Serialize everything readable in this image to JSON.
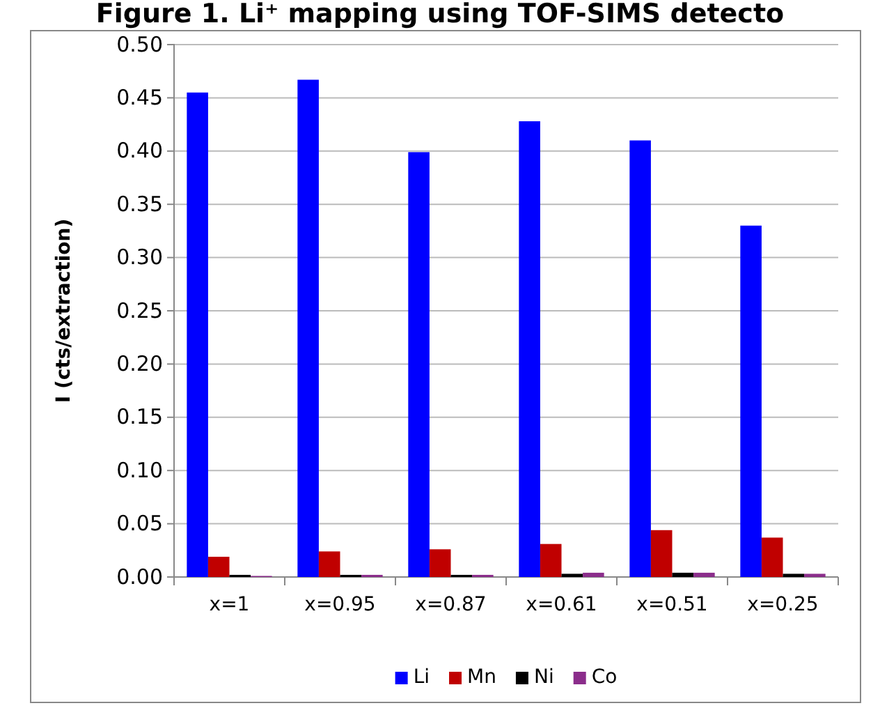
{
  "chart_data": {
    "type": "bar",
    "title": "Figure 1. Li⁺ mapping using TOF-SIMS detecto",
    "ylabel": "I (cts/extraction)",
    "categories": [
      "x=1",
      "x=0.95",
      "x=0.87",
      "x=0.61",
      "x=0.51",
      "x=0.25"
    ],
    "series": [
      {
        "name": "Li",
        "color": "#0000ff",
        "values": [
          0.455,
          0.467,
          0.399,
          0.428,
          0.41,
          0.33
        ]
      },
      {
        "name": "Mn",
        "color": "#c00000",
        "values": [
          0.019,
          0.024,
          0.026,
          0.031,
          0.044,
          0.037
        ]
      },
      {
        "name": "Ni",
        "color": "#000000",
        "values": [
          0.002,
          0.002,
          0.002,
          0.003,
          0.004,
          0.003
        ]
      },
      {
        "name": "Co",
        "color": "#8b2d8b",
        "values": [
          0.001,
          0.002,
          0.002,
          0.004,
          0.004,
          0.003
        ]
      }
    ],
    "ylim": [
      0,
      0.5
    ],
    "yticks": [
      {
        "value": 0,
        "label": "0.00"
      },
      {
        "value": 0.05,
        "label": "0.05"
      },
      {
        "value": 0.1,
        "label": "0.10"
      },
      {
        "value": 0.15,
        "label": "0.15"
      },
      {
        "value": 0.2,
        "label": "0.20"
      },
      {
        "value": 0.25,
        "label": "0.25"
      },
      {
        "value": 0.3,
        "label": "0.30"
      },
      {
        "value": 0.35,
        "label": "0.35"
      },
      {
        "value": 0.4,
        "label": "0.40"
      },
      {
        "value": 0.45,
        "label": "0.45"
      },
      {
        "value": 0.5,
        "label": "0.50"
      }
    ],
    "grid": "y",
    "legend": "bottom"
  }
}
